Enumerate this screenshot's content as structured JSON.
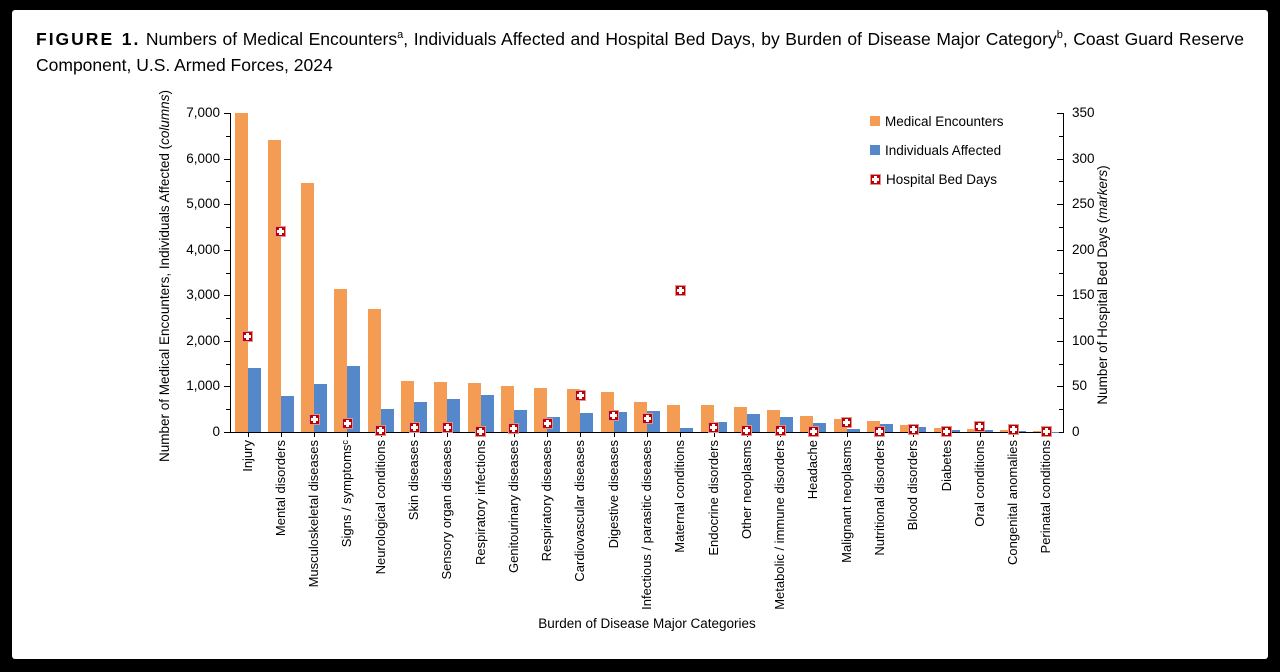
{
  "figure": {
    "label": "FIGURE 1.",
    "title_part1": "Numbers of Medical Encounters",
    "sup_a": "a",
    "title_part2": ", Individuals Affected and Hospital Bed Days, by Burden of Disease Major Category",
    "sup_b": "b",
    "title_part3": ", Coast Guard Reserve Component, U.S. Armed Forces, 2024"
  },
  "chart_data": {
    "type": "bar",
    "subtype": "grouped columns with scatter markers on secondary axis",
    "categories": [
      "Injury",
      "Mental disorders",
      "Musculoskeletal diseases",
      "Signs / symptomsᶜ",
      "Neurological conditions",
      "Skin diseases",
      "Sensory organ diseases",
      "Respiratory infections",
      "Genitourinary diseases",
      "Respiratory diseases",
      "Cardiovascular diseases",
      "Digestive diseases",
      "Infectious / parasitic diseases",
      "Maternal conditions",
      "Endocrine disorders",
      "Other neoplasms",
      "Metabolic / immune disorders",
      "Headache",
      "Malignant neoplasms",
      "Nutritional disorders",
      "Blood disorders",
      "Diabetes",
      "Oral conditions",
      "Congenital anomalies",
      "Perinatal conditions"
    ],
    "series": [
      {
        "name": "Medical Encounters",
        "axis": "left",
        "style": "column",
        "color": "#F59C54",
        "values": [
          7000,
          6410,
          5470,
          3140,
          2690,
          1120,
          1100,
          1080,
          1020,
          970,
          950,
          870,
          650,
          600,
          590,
          550,
          490,
          360,
          280,
          235,
          160,
          85,
          60,
          50,
          15
        ]
      },
      {
        "name": "Individuals Affected",
        "axis": "left",
        "style": "column",
        "color": "#5588CB",
        "values": [
          1410,
          780,
          1060,
          1440,
          510,
          660,
          730,
          810,
          480,
          340,
          420,
          440,
          450,
          90,
          210,
          390,
          320,
          190,
          70,
          170,
          100,
          40,
          40,
          20,
          10
        ]
      },
      {
        "name": "Hospital Bed Days",
        "axis": "right",
        "style": "plus-square-marker",
        "color": "#C00000",
        "values": [
          105,
          220,
          14,
          9,
          2,
          5,
          5,
          1,
          4,
          9,
          40,
          18,
          15,
          155,
          5,
          2,
          2,
          1,
          10,
          1,
          3,
          1,
          6,
          3,
          1
        ]
      }
    ],
    "left_axis": {
      "title_prefix": "Number of Medical Encounters, Individuals Affected (",
      "title_italic": "columns",
      "title_suffix": ")",
      "min": 0,
      "max": 7000,
      "major": 1000,
      "minor": 500,
      "tick_labels": [
        "7,000",
        "6,000",
        "5,000",
        "4,000",
        "3,000",
        "2,000",
        "1,000",
        "0"
      ]
    },
    "right_axis": {
      "title_prefix": "Number of Hospital Bed Days (",
      "title_italic": "markers",
      "title_suffix": ")",
      "min": 0,
      "max": 350,
      "major": 50,
      "minor": 25,
      "tick_labels": [
        "350",
        "300",
        "250",
        "200",
        "150",
        "100",
        "50",
        "0"
      ]
    },
    "x_axis": {
      "label": "Burden of Disease Major Categories"
    },
    "legend_position": "upper-right-inside"
  }
}
